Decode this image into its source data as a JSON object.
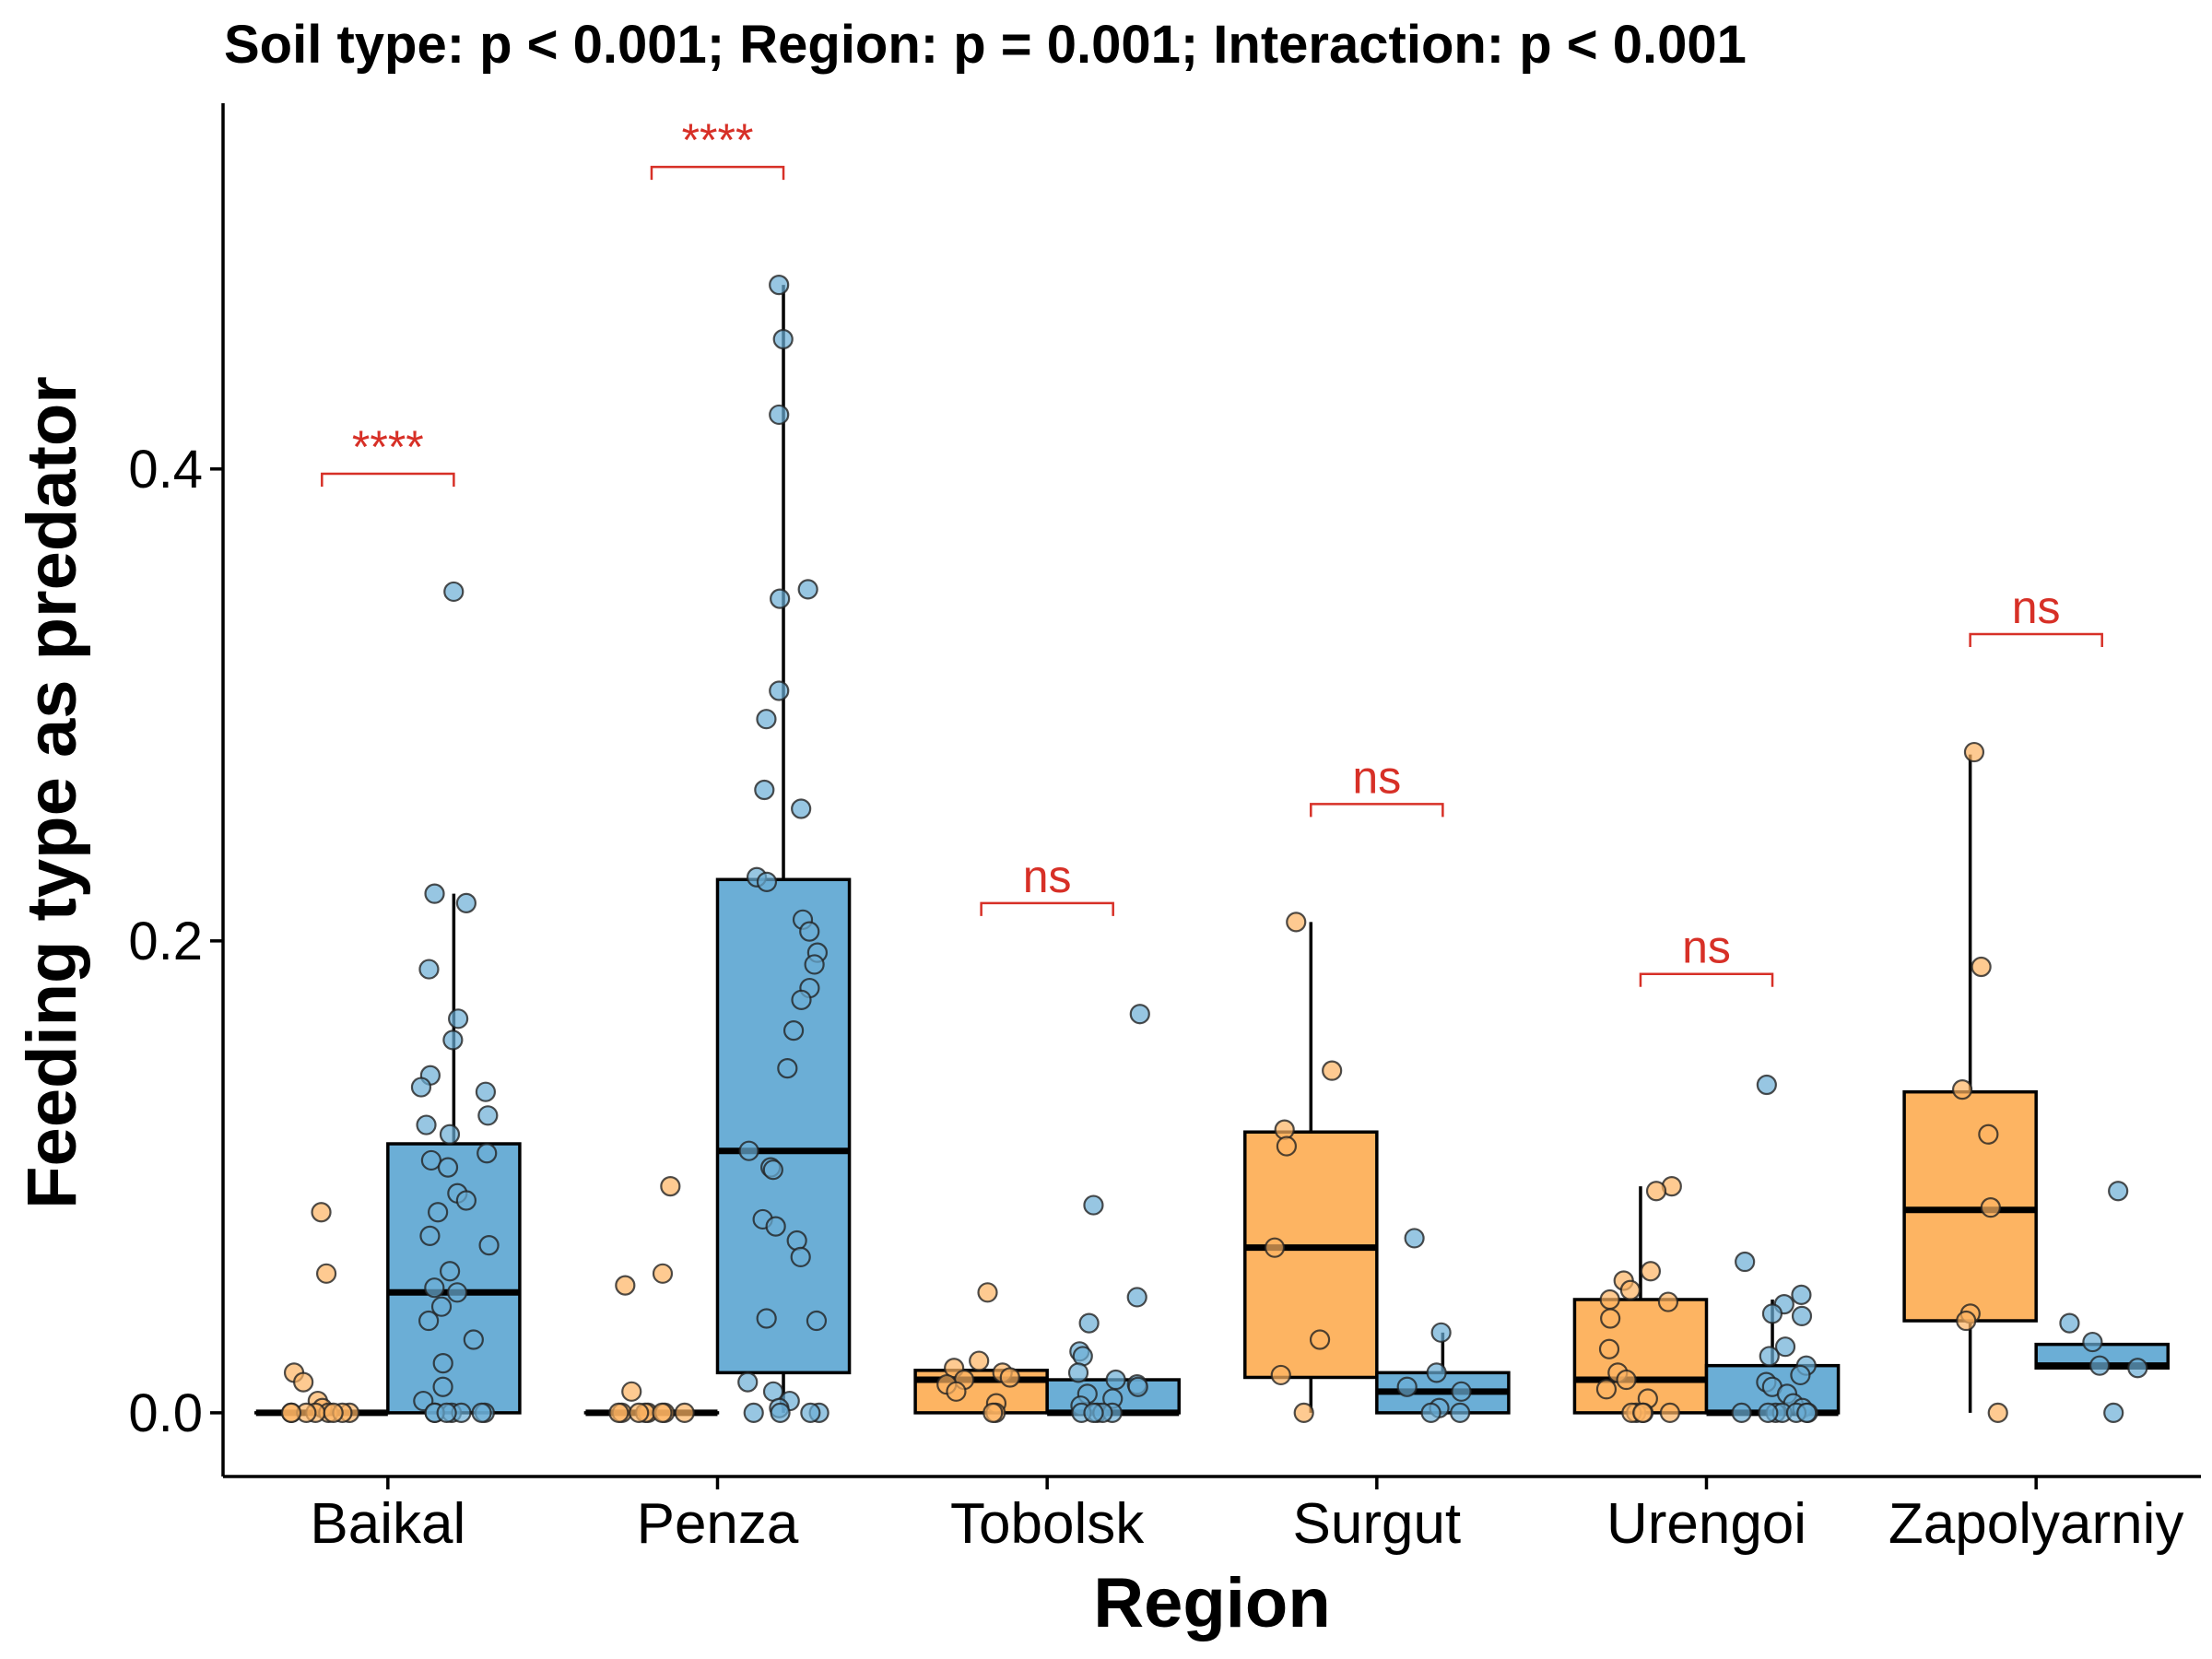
{
  "chart_data": {
    "type": "box",
    "title": "Soil type: p < 0.001; Region: p = 0.001; Interaction: p < 0.001",
    "xlabel": "Region",
    "ylabel": "Feeding type as predator",
    "ylim": [
      -0.027,
      0.555
    ],
    "yticks": [
      0.0,
      0.2,
      0.4
    ],
    "ytick_labels": [
      "0.0",
      "0.2",
      "0.4"
    ],
    "categories": [
      "Baikal",
      "Penza",
      "Tobolsk",
      "Surgut",
      "Urengoi",
      "Zapolyarniy"
    ],
    "colors": {
      "series_a": "#fdb462",
      "series_b": "#6baed6",
      "annotation": "#d73027"
    },
    "groups": [
      {
        "region": "Baikal",
        "annotation": "****",
        "bracket_y": 0.398,
        "boxes": [
          {
            "color": "series_a",
            "q1": 0.0,
            "median": 0.0,
            "q3": 0.0,
            "whisker_low": 0.0,
            "whisker_high": 0.0,
            "points": [
              0.085,
              0.059,
              0.017,
              0.013,
              0.005,
              0.002,
              0,
              0,
              0,
              0,
              0,
              0,
              0,
              0
            ]
          },
          {
            "color": "series_b",
            "q1": 0.0,
            "median": 0.051,
            "q3": 0.114,
            "whisker_low": 0.0,
            "whisker_high": 0.22,
            "points": [
              0.348,
              0.22,
              0.216,
              0.188,
              0.167,
              0.158,
              0.143,
              0.138,
              0.136,
              0.126,
              0.122,
              0.118,
              0.11,
              0.107,
              0.104,
              0.093,
              0.09,
              0.085,
              0.075,
              0.071,
              0.06,
              0.053,
              0.051,
              0.045,
              0.039,
              0.031,
              0.021,
              0.011,
              0.005,
              0,
              0,
              0,
              0,
              0,
              0,
              0
            ]
          }
        ]
      },
      {
        "region": "Penza",
        "annotation": "****",
        "bracket_y": 0.528,
        "boxes": [
          {
            "color": "series_a",
            "q1": 0.0,
            "median": 0.0,
            "q3": 0.0,
            "whisker_low": 0.0,
            "whisker_high": 0.0,
            "points": [
              0.096,
              0.059,
              0.054,
              0.009,
              0,
              0,
              0,
              0,
              0,
              0,
              0,
              0
            ]
          },
          {
            "color": "series_b",
            "q1": 0.017,
            "median": 0.111,
            "q3": 0.226,
            "whisker_low": 0.0,
            "whisker_high": 0.478,
            "points": [
              0.478,
              0.455,
              0.423,
              0.349,
              0.345,
              0.306,
              0.294,
              0.264,
              0.256,
              0.227,
              0.225,
              0.209,
              0.204,
              0.195,
              0.19,
              0.18,
              0.175,
              0.162,
              0.146,
              0.111,
              0.104,
              0.103,
              0.082,
              0.079,
              0.073,
              0.066,
              0.04,
              0.039,
              0.013,
              0.009,
              0.005,
              0.002,
              0,
              0,
              0,
              0
            ]
          }
        ]
      },
      {
        "region": "Tobolsk",
        "annotation": "ns",
        "bracket_y": 0.216,
        "boxes": [
          {
            "color": "series_a",
            "q1": 0.0,
            "median": 0.014,
            "q3": 0.018,
            "whisker_low": 0.0,
            "whisker_high": 0.018,
            "points": [
              0.051,
              0.022,
              0.019,
              0.017,
              0.015,
              0.014,
              0.012,
              0.009,
              0.004,
              0,
              0
            ]
          },
          {
            "color": "series_b",
            "q1": 0.0,
            "median": 0.0,
            "q3": 0.014,
            "whisker_low": 0.0,
            "whisker_high": 0.014,
            "points": [
              0.169,
              0.088,
              0.049,
              0.038,
              0.026,
              0.024,
              0.017,
              0.014,
              0.012,
              0.011,
              0.008,
              0.006,
              0.003,
              0,
              0,
              0,
              0,
              0
            ]
          }
        ]
      },
      {
        "region": "Surgut",
        "annotation": "ns",
        "bracket_y": 0.258,
        "boxes": [
          {
            "color": "series_a",
            "q1": 0.015,
            "median": 0.07,
            "q3": 0.119,
            "whisker_low": 0.0,
            "whisker_high": 0.208,
            "points": [
              0.208,
              0.145,
              0.12,
              0.113,
              0.07,
              0.031,
              0.016,
              0
            ]
          },
          {
            "color": "series_b",
            "q1": 0.0,
            "median": 0.009,
            "q3": 0.017,
            "whisker_low": 0.0,
            "whisker_high": 0.034,
            "points": [
              0.074,
              0.034,
              0.017,
              0.011,
              0.009,
              0.002,
              0,
              0
            ]
          }
        ]
      },
      {
        "region": "Urengoi",
        "annotation": "ns",
        "bracket_y": 0.186,
        "boxes": [
          {
            "color": "series_a",
            "q1": 0.0,
            "median": 0.014,
            "q3": 0.048,
            "whisker_low": 0.0,
            "whisker_high": 0.096,
            "points": [
              0.096,
              0.094,
              0.06,
              0.056,
              0.052,
              0.048,
              0.047,
              0.04,
              0.027,
              0.017,
              0.014,
              0.01,
              0.006,
              0,
              0,
              0,
              0,
              0
            ]
          },
          {
            "color": "series_b",
            "q1": 0.0,
            "median": 0.0,
            "q3": 0.02,
            "whisker_low": 0.0,
            "whisker_high": 0.048,
            "points": [
              0.139,
              0.064,
              0.05,
              0.046,
              0.042,
              0.041,
              0.028,
              0.024,
              0.02,
              0.016,
              0.013,
              0.011,
              0.008,
              0.004,
              0.002,
              0,
              0,
              0,
              0,
              0,
              0,
              0
            ]
          }
        ]
      },
      {
        "region": "Zapolyarniy",
        "annotation": "ns",
        "bracket_y": 0.33,
        "boxes": [
          {
            "color": "series_a",
            "q1": 0.039,
            "median": 0.086,
            "q3": 0.136,
            "whisker_low": 0.0,
            "whisker_high": 0.279,
            "points": [
              0.28,
              0.189,
              0.137,
              0.118,
              0.087,
              0.042,
              0.039,
              0
            ]
          },
          {
            "color": "series_b",
            "q1": 0.019,
            "median": 0.02,
            "q3": 0.029,
            "whisker_low": 0.019,
            "whisker_high": 0.029,
            "points": [
              0.094,
              0.038,
              0.03,
              0.02,
              0.019,
              0
            ]
          }
        ]
      }
    ]
  }
}
